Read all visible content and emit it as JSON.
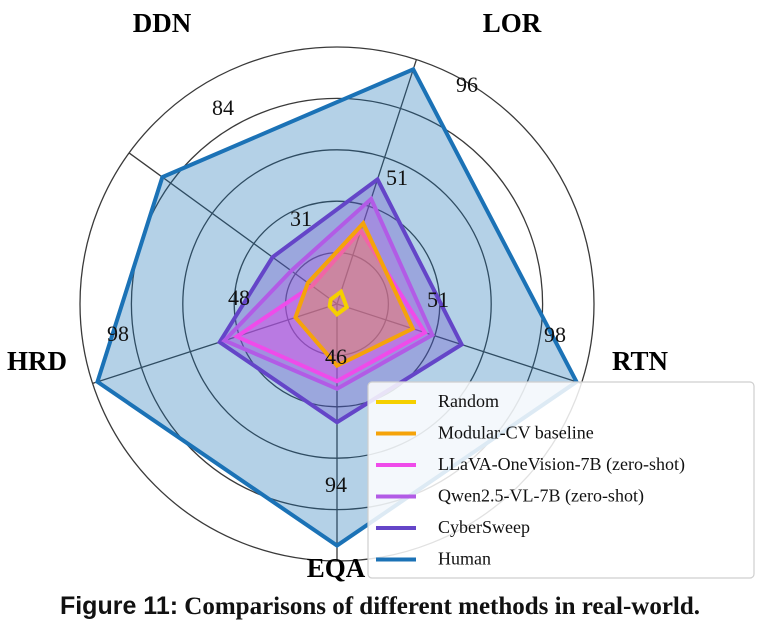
{
  "chart_data": {
    "type": "radar",
    "axes": [
      "DDN",
      "LOR",
      "RTN",
      "EQA",
      "HRD"
    ],
    "rmax": 100,
    "grid_levels": [
      20,
      40,
      60,
      80,
      100
    ],
    "grid": true,
    "legend_position": "bottom-right",
    "series": [
      {
        "name": "Random",
        "color": "#f5d000",
        "fill": false,
        "values": [
          3,
          5,
          4,
          4,
          3
        ]
      },
      {
        "name": "Modular-CV baseline",
        "color": "#f5a30a",
        "fill": true,
        "values": [
          14,
          33,
          31,
          24,
          17
        ]
      },
      {
        "name": "LLaVA-OneVision-7B (zero-shot)",
        "color": "#ef4bea",
        "fill": true,
        "values": [
          12,
          30,
          36,
          30,
          41
        ]
      },
      {
        "name": "Qwen2.5-VL-7B (zero-shot)",
        "color": "#b25be6",
        "fill": true,
        "values": [
          22,
          43,
          39,
          33,
          46
        ]
      },
      {
        "name": "CyberSweep",
        "color": "#6445c8",
        "fill": true,
        "values": [
          31,
          51,
          51,
          46,
          48
        ]
      },
      {
        "name": "Human",
        "color": "#1b72b6",
        "fill": true,
        "values": [
          84,
          96,
          98,
          94,
          98
        ]
      }
    ],
    "value_labels": [
      {
        "axis": "DDN",
        "text": "84"
      },
      {
        "axis": "DDN",
        "text": "31"
      },
      {
        "axis": "LOR",
        "text": "96"
      },
      {
        "axis": "LOR",
        "text": "51"
      },
      {
        "axis": "RTN",
        "text": "98"
      },
      {
        "axis": "RTN",
        "text": "51"
      },
      {
        "axis": "EQA",
        "text": "94"
      },
      {
        "axis": "EQA",
        "text": "46"
      },
      {
        "axis": "HRD",
        "text": "98"
      },
      {
        "axis": "HRD",
        "text": "48"
      }
    ]
  },
  "caption": {
    "figure_label": "Figure 11:",
    "text": "Comparisons of different methods in real-world."
  }
}
